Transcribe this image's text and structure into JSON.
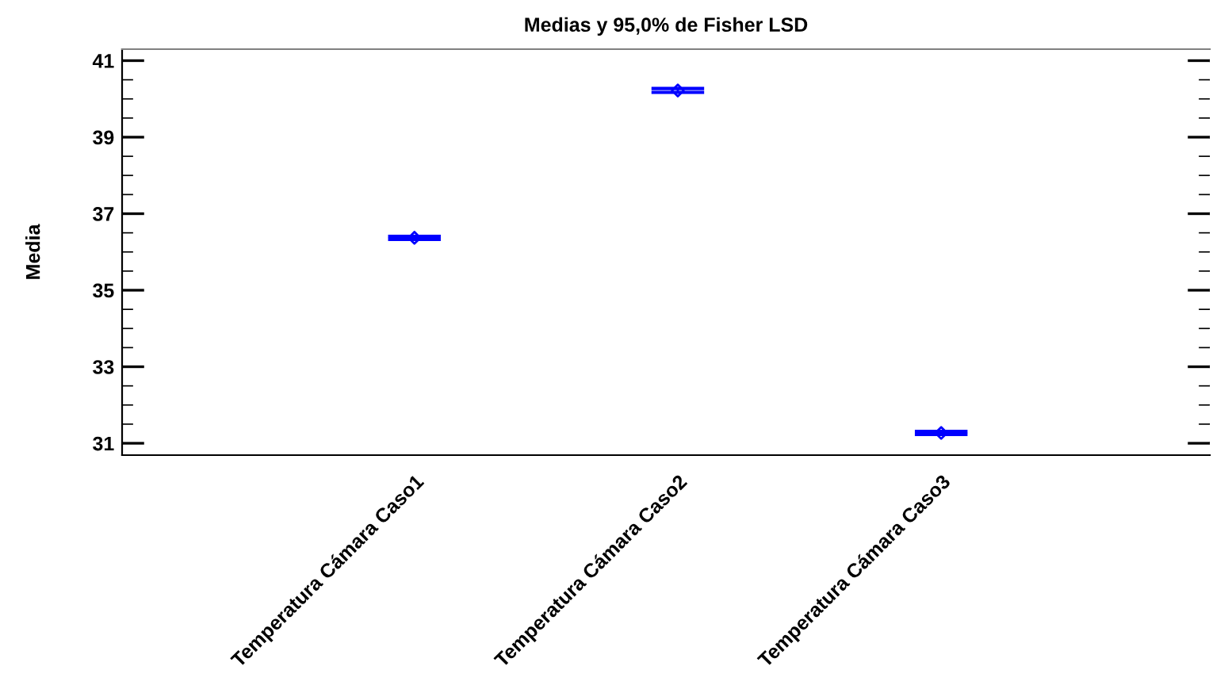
{
  "chart_data": {
    "type": "scatter",
    "title": "Medias y 95,0% de Fisher LSD",
    "ylabel": "Media",
    "categories": [
      "Temperatura Cámara Caso1",
      "Temperatura Cámara Caso2",
      "Temperatura Cámara Caso3"
    ],
    "values": [
      36.37,
      40.22,
      31.27
    ],
    "errors": [
      0.04,
      0.05,
      0.04
    ],
    "color": "#0000ff",
    "marker": "diamond",
    "ylim": [
      30.69,
      41.3
    ],
    "yticks": [
      31,
      33,
      35,
      37,
      39,
      41
    ],
    "grid": false,
    "legend": false
  }
}
